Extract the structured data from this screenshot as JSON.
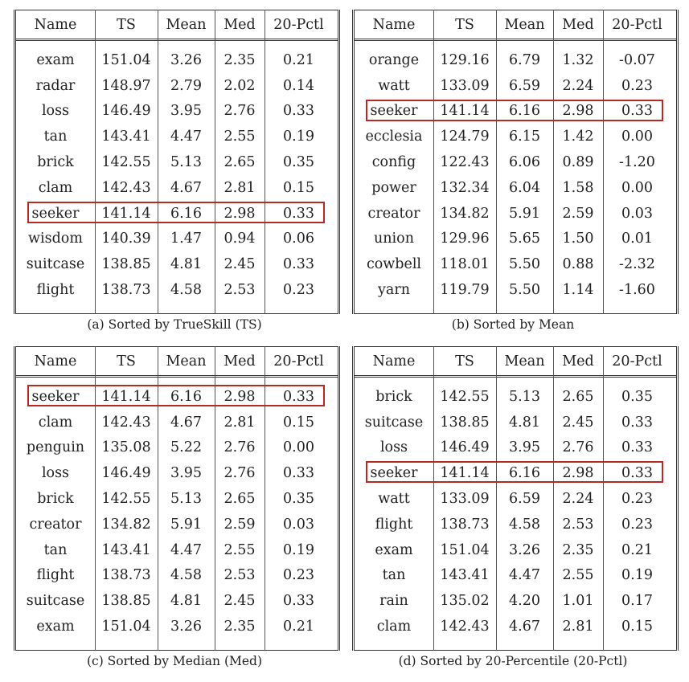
{
  "columns": [
    "Name",
    "TS",
    "Mean",
    "Med",
    "20-Pctl"
  ],
  "highlight_color": "#b72a24",
  "panels": [
    {
      "caption": "(a) Sorted by TrueSkill (TS)",
      "highlight_row": 6,
      "rows": [
        [
          "exam",
          "151.04",
          "3.26",
          "2.35",
          "0.21"
        ],
        [
          "radar",
          "148.97",
          "2.79",
          "2.02",
          "0.14"
        ],
        [
          "loss",
          "146.49",
          "3.95",
          "2.76",
          "0.33"
        ],
        [
          "tan",
          "143.41",
          "4.47",
          "2.55",
          "0.19"
        ],
        [
          "brick",
          "142.55",
          "5.13",
          "2.65",
          "0.35"
        ],
        [
          "clam",
          "142.43",
          "4.67",
          "2.81",
          "0.15"
        ],
        [
          "seeker",
          "141.14",
          "6.16",
          "2.98",
          "0.33"
        ],
        [
          "wisdom",
          "140.39",
          "1.47",
          "0.94",
          "0.06"
        ],
        [
          "suitcase",
          "138.85",
          "4.81",
          "2.45",
          "0.33"
        ],
        [
          "flight",
          "138.73",
          "4.58",
          "2.53",
          "0.23"
        ]
      ]
    },
    {
      "caption": "(b) Sorted by Mean",
      "highlight_row": 2,
      "rows": [
        [
          "orange",
          "129.16",
          "6.79",
          "1.32",
          "-0.07"
        ],
        [
          "watt",
          "133.09",
          "6.59",
          "2.24",
          "0.23"
        ],
        [
          "seeker",
          "141.14",
          "6.16",
          "2.98",
          "0.33"
        ],
        [
          "ecclesia",
          "124.79",
          "6.15",
          "1.42",
          "0.00"
        ],
        [
          "config",
          "122.43",
          "6.06",
          "0.89",
          "-1.20"
        ],
        [
          "power",
          "132.34",
          "6.04",
          "1.58",
          "0.00"
        ],
        [
          "creator",
          "134.82",
          "5.91",
          "2.59",
          "0.03"
        ],
        [
          "union",
          "129.96",
          "5.65",
          "1.50",
          "0.01"
        ],
        [
          "cowbell",
          "118.01",
          "5.50",
          "0.88",
          "-2.32"
        ],
        [
          "yarn",
          "119.79",
          "5.50",
          "1.14",
          "-1.60"
        ]
      ]
    },
    {
      "caption": "(c) Sorted by Median (Med)",
      "highlight_row": 0,
      "rows": [
        [
          "seeker",
          "141.14",
          "6.16",
          "2.98",
          "0.33"
        ],
        [
          "clam",
          "142.43",
          "4.67",
          "2.81",
          "0.15"
        ],
        [
          "penguin",
          "135.08",
          "5.22",
          "2.76",
          "0.00"
        ],
        [
          "loss",
          "146.49",
          "3.95",
          "2.76",
          "0.33"
        ],
        [
          "brick",
          "142.55",
          "5.13",
          "2.65",
          "0.35"
        ],
        [
          "creator",
          "134.82",
          "5.91",
          "2.59",
          "0.03"
        ],
        [
          "tan",
          "143.41",
          "4.47",
          "2.55",
          "0.19"
        ],
        [
          "flight",
          "138.73",
          "4.58",
          "2.53",
          "0.23"
        ],
        [
          "suitcase",
          "138.85",
          "4.81",
          "2.45",
          "0.33"
        ],
        [
          "exam",
          "151.04",
          "3.26",
          "2.35",
          "0.21"
        ]
      ]
    },
    {
      "caption": "(d) Sorted by 20-Percentile (20-Pctl)",
      "highlight_row": 3,
      "rows": [
        [
          "brick",
          "142.55",
          "5.13",
          "2.65",
          "0.35"
        ],
        [
          "suitcase",
          "138.85",
          "4.81",
          "2.45",
          "0.33"
        ],
        [
          "loss",
          "146.49",
          "3.95",
          "2.76",
          "0.33"
        ],
        [
          "seeker",
          "141.14",
          "6.16",
          "2.98",
          "0.33"
        ],
        [
          "watt",
          "133.09",
          "6.59",
          "2.24",
          "0.23"
        ],
        [
          "flight",
          "138.73",
          "4.58",
          "2.53",
          "0.23"
        ],
        [
          "exam",
          "151.04",
          "3.26",
          "2.35",
          "0.21"
        ],
        [
          "tan",
          "143.41",
          "4.47",
          "2.55",
          "0.19"
        ],
        [
          "rain",
          "135.02",
          "4.20",
          "1.01",
          "0.17"
        ],
        [
          "clam",
          "142.43",
          "4.67",
          "2.81",
          "0.15"
        ]
      ]
    }
  ]
}
